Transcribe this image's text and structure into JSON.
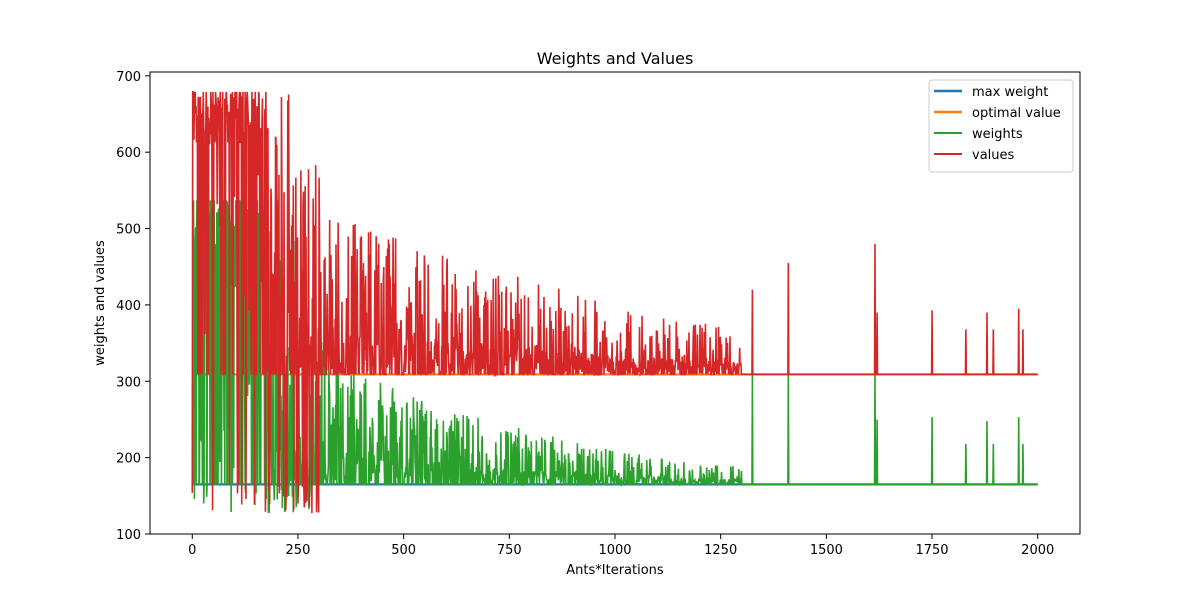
{
  "chart_data": {
    "type": "line",
    "title": "Weights and Values",
    "xlabel": "Ants*Iterations",
    "ylabel": "weights and values",
    "xlim": [
      -100,
      2100
    ],
    "ylim": [
      100,
      705
    ],
    "xticks": [
      0,
      250,
      500,
      750,
      1000,
      1250,
      1500,
      1750,
      2000
    ],
    "yticks": [
      100,
      200,
      300,
      400,
      500,
      600,
      700
    ],
    "grid": false,
    "legend_position": "top-right",
    "series": [
      {
        "name": "max weight",
        "color": "#1f77b4",
        "kind": "constant",
        "x": [
          0,
          2000
        ],
        "y": [
          165,
          165
        ]
      },
      {
        "name": "optimal value",
        "color": "#ff7f0e",
        "kind": "constant",
        "x": [
          0,
          2000
        ],
        "y": [
          309,
          309
        ]
      },
      {
        "name": "weights",
        "color": "#2ca02c",
        "kind": "noisy",
        "x_range": [
          0,
          2000
        ],
        "baseline": 165,
        "trend_points": [
          [
            0,
            500
          ],
          [
            100,
            470
          ],
          [
            200,
            350
          ],
          [
            300,
            260
          ],
          [
            400,
            230
          ],
          [
            600,
            210
          ],
          [
            1000,
            185
          ],
          [
            1400,
            172
          ],
          [
            2000,
            165
          ]
        ],
        "peaks": [
          [
            1325,
            310
          ],
          [
            1410,
            310
          ],
          [
            1615,
            310
          ],
          [
            1620,
            250
          ],
          [
            1750,
            253
          ],
          [
            1830,
            218
          ],
          [
            1880,
            248
          ],
          [
            1895,
            218
          ],
          [
            1955,
            253
          ],
          [
            1965,
            218
          ]
        ],
        "min_value": 127,
        "max_value": 537
      },
      {
        "name": "values",
        "color": "#d62728",
        "kind": "noisy",
        "x_range": [
          0,
          2000
        ],
        "baseline": 309,
        "trend_points": [
          [
            0,
            640
          ],
          [
            100,
            600
          ],
          [
            200,
            500
          ],
          [
            300,
            430
          ],
          [
            400,
            400
          ],
          [
            600,
            380
          ],
          [
            1000,
            350
          ],
          [
            1400,
            330
          ],
          [
            2000,
            309
          ]
        ],
        "peaks": [
          [
            1325,
            420
          ],
          [
            1410,
            455
          ],
          [
            1615,
            480
          ],
          [
            1620,
            390
          ],
          [
            1750,
            393
          ],
          [
            1830,
            368
          ],
          [
            1880,
            390
          ],
          [
            1895,
            368
          ],
          [
            1955,
            395
          ],
          [
            1965,
            368
          ]
        ],
        "min_value": 127,
        "max_value": 679
      }
    ]
  }
}
